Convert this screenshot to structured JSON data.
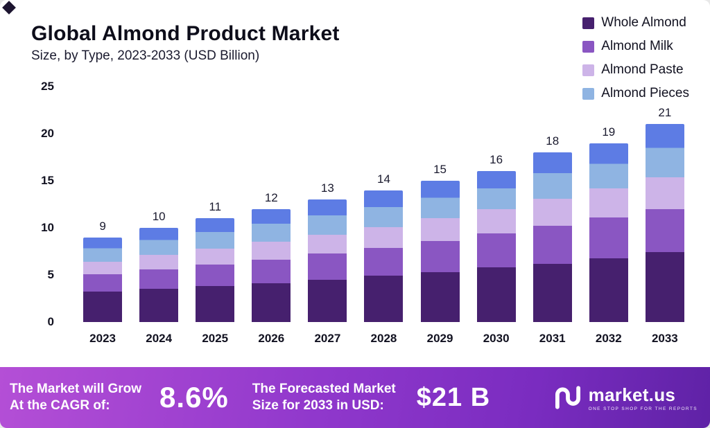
{
  "header": {
    "title": "Global Almond Product Market",
    "subtitle": "Size, by Type, 2023-2033 (USD Billion)"
  },
  "legend": [
    {
      "label": "Whole Almond",
      "color": "#46206e"
    },
    {
      "label": "Almond Milk",
      "color": "#8a56c2"
    },
    {
      "label": "Almond Paste",
      "color": "#cdb4e8"
    },
    {
      "label": "Almond Pieces",
      "color": "#8fb4e2"
    }
  ],
  "chart_data": {
    "type": "bar",
    "stacked": true,
    "title": "Global Almond Product Market",
    "subtitle": "Size, by Type, 2023-2033 (USD Billion)",
    "xlabel": "",
    "ylabel": "USD Billion",
    "ylim": [
      0,
      25
    ],
    "yticks": [
      0,
      5,
      10,
      15,
      20,
      25
    ],
    "grid": false,
    "legend_position": "top-right",
    "categories": [
      "2023",
      "2024",
      "2025",
      "2026",
      "2027",
      "2028",
      "2029",
      "2030",
      "2031",
      "2032",
      "2033"
    ],
    "totals": [
      9,
      10,
      11,
      12,
      13,
      14,
      15,
      16,
      18,
      19,
      21
    ],
    "series": [
      {
        "name": "Whole Almond",
        "color": "#46206e",
        "values": [
          3.2,
          3.5,
          3.8,
          4.1,
          4.5,
          4.9,
          5.3,
          5.8,
          6.2,
          6.8,
          7.4
        ]
      },
      {
        "name": "Almond Milk",
        "color": "#8a56c2",
        "values": [
          1.9,
          2.1,
          2.3,
          2.5,
          2.8,
          3.0,
          3.3,
          3.6,
          4.0,
          4.3,
          4.6
        ]
      },
      {
        "name": "Almond Paste",
        "color": "#cdb4e8",
        "values": [
          1.3,
          1.5,
          1.7,
          1.9,
          2.0,
          2.2,
          2.4,
          2.6,
          2.9,
          3.1,
          3.4
        ]
      },
      {
        "name": "Almond Pieces",
        "color": "#8fb4e2",
        "values": [
          2.6,
          2.9,
          3.2,
          3.5,
          3.7,
          3.9,
          4.0,
          4.0,
          4.9,
          4.8,
          5.6
        ]
      }
    ],
    "pieces_top_shade": "#5d7ce4"
  },
  "footer": {
    "cagr_label": "The Market will Grow\nAt the CAGR of:",
    "cagr_value": "8.6%",
    "forecast_label": "The Forecasted Market\nSize for 2033 in USD:",
    "forecast_value": "$21 B",
    "brand": "market.us",
    "brand_tagline": "One Stop Shop For The Reports"
  }
}
